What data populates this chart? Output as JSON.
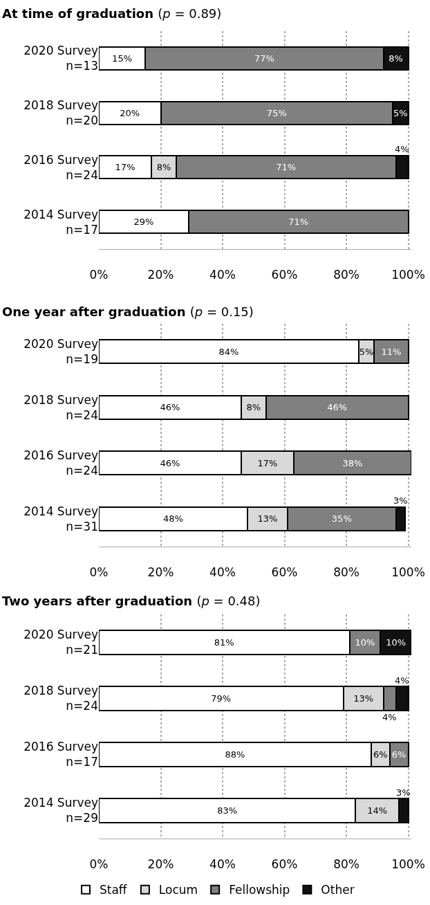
{
  "chart_data": [
    {
      "type": "bar",
      "orientation": "horizontal",
      "stacked": true,
      "title": "At time of graduation (p = 0.89)",
      "categories": [
        "2020 Survey\nn=13",
        "2018 Survey\nn=20",
        "2016 Survey\nn=24",
        "2014 Survey\nn=17"
      ],
      "xlim": [
        0,
        101
      ],
      "xticks": [
        {
          "value": 0,
          "label": "0%"
        },
        {
          "value": 20,
          "label": "20%"
        },
        {
          "value": 40,
          "label": "40%"
        },
        {
          "value": 60,
          "label": "60%"
        },
        {
          "value": 80,
          "label": "80%"
        },
        {
          "value": 100,
          "label": "100%"
        }
      ],
      "grid": "x",
      "series": [
        {
          "color": "#ffffff",
          "values": [
            15,
            20,
            17,
            29
          ],
          "value_labels": [
            "15%",
            "20%",
            "17%",
            "29%"
          ]
        },
        {
          "color": "#d9d9d9",
          "values": [
            null,
            null,
            8,
            null
          ],
          "value_labels": [
            null,
            null,
            "8%",
            null
          ]
        },
        {
          "color": "#808080",
          "values": [
            77,
            75,
            71,
            71
          ],
          "value_labels": [
            "77%",
            "75%",
            "71%",
            "71%"
          ]
        },
        {
          "color": "#111111",
          "values": [
            8,
            5,
            4,
            null
          ],
          "value_labels": [
            "8%",
            "5%",
            "4%",
            null
          ]
        }
      ]
    },
    {
      "type": "bar",
      "orientation": "horizontal",
      "stacked": true,
      "title": "One year after graduation (p = 0.15)",
      "categories": [
        "2020 Survey\nn=19",
        "2018 Survey\nn=24",
        "2016 Survey\nn=24",
        "2014 Survey\nn=31"
      ],
      "xlim": [
        0,
        101
      ],
      "xticks": [
        {
          "value": 0,
          "label": "0%"
        },
        {
          "value": 20,
          "label": "20%"
        },
        {
          "value": 40,
          "label": "40%"
        },
        {
          "value": 60,
          "label": "60%"
        },
        {
          "value": 80,
          "label": "80%"
        },
        {
          "value": 100,
          "label": "100%"
        }
      ],
      "grid": "x",
      "series": [
        {
          "color": "#ffffff",
          "values": [
            84,
            46,
            46,
            48
          ],
          "value_labels": [
            "84%",
            "46%",
            "46%",
            "48%"
          ]
        },
        {
          "color": "#d9d9d9",
          "values": [
            5,
            8,
            17,
            13
          ],
          "value_labels": [
            "5%",
            "8%",
            "17%",
            "13%"
          ]
        },
        {
          "color": "#808080",
          "values": [
            11,
            46,
            38,
            35
          ],
          "value_labels": [
            "11%",
            "46%",
            "38%",
            "35%"
          ]
        },
        {
          "color": "#111111",
          "values": [
            null,
            null,
            null,
            3
          ],
          "value_labels": [
            null,
            null,
            null,
            "3%"
          ]
        }
      ]
    },
    {
      "type": "bar",
      "orientation": "horizontal",
      "stacked": true,
      "title": "Two years after graduation (p = 0.48)",
      "categories": [
        "2020 Survey\nn=21",
        "2018 Survey\nn=24",
        "2016 Survey\nn=17",
        "2014 Survey\nn=29"
      ],
      "xlim": [
        0,
        101
      ],
      "xticks": [
        {
          "value": 0,
          "label": "0%"
        },
        {
          "value": 20,
          "label": "20%"
        },
        {
          "value": 40,
          "label": "40%"
        },
        {
          "value": 60,
          "label": "60%"
        },
        {
          "value": 80,
          "label": "80%"
        },
        {
          "value": 100,
          "label": "100%"
        }
      ],
      "grid": "x",
      "legend": "bottom",
      "series": [
        {
          "name": "Staff",
          "color": "#ffffff",
          "values": [
            81,
            79,
            88,
            83
          ],
          "value_labels": [
            "81%",
            "79%",
            "88%",
            "83%"
          ]
        },
        {
          "name": "Locum",
          "color": "#d9d9d9",
          "values": [
            null,
            13,
            6,
            14
          ],
          "value_labels": [
            null,
            "13%",
            "6%",
            "14%"
          ]
        },
        {
          "name": "Fellowship",
          "color": "#808080",
          "values": [
            10,
            4,
            6,
            null
          ],
          "value_labels": [
            "10%",
            "4%",
            "6%",
            null
          ]
        },
        {
          "name": "Other",
          "color": "#111111",
          "values": [
            10,
            4,
            null,
            3
          ],
          "value_labels": [
            "10%",
            "4%",
            null,
            "3%"
          ]
        }
      ]
    }
  ]
}
